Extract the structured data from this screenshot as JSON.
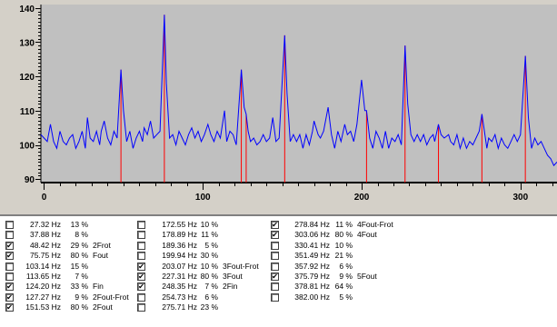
{
  "chart_data": {
    "type": "line",
    "xlim": [
      -2,
      323
    ],
    "ylim": [
      89,
      141
    ],
    "x_ticks": [
      0,
      100,
      200,
      300
    ],
    "y_ticks": [
      90,
      100,
      110,
      120,
      130,
      140
    ],
    "plot_bg": "#c0c0c0",
    "line_color": "#0000ff",
    "marker_color": "#ff0000",
    "markers": [
      {
        "x": 48.42,
        "y": 122
      },
      {
        "x": 75.75,
        "y": 138
      },
      {
        "x": 124.2,
        "y": 122
      },
      {
        "x": 127.27,
        "y": 109
      },
      {
        "x": 151.53,
        "y": 132
      },
      {
        "x": 203.07,
        "y": 110
      },
      {
        "x": 227.31,
        "y": 129
      },
      {
        "x": 248.35,
        "y": 106
      },
      {
        "x": 275.71,
        "y": 109
      },
      {
        "x": 303.06,
        "y": 126
      }
    ],
    "series": [
      {
        "points": [
          [
            -2,
            103
          ],
          [
            0,
            102
          ],
          [
            2,
            101
          ],
          [
            4,
            106
          ],
          [
            6,
            101
          ],
          [
            8,
            99
          ],
          [
            10,
            104
          ],
          [
            12,
            101
          ],
          [
            14,
            100
          ],
          [
            16,
            102
          ],
          [
            18,
            103
          ],
          [
            20,
            99
          ],
          [
            22,
            101
          ],
          [
            24,
            104
          ],
          [
            26,
            99
          ],
          [
            27.32,
            108
          ],
          [
            29,
            102
          ],
          [
            31,
            101
          ],
          [
            33,
            104
          ],
          [
            35,
            100
          ],
          [
            36,
            104
          ],
          [
            37.88,
            107
          ],
          [
            40,
            102
          ],
          [
            42,
            100
          ],
          [
            44,
            104
          ],
          [
            46,
            102
          ],
          [
            48.42,
            122
          ],
          [
            50,
            110
          ],
          [
            52,
            101
          ],
          [
            54,
            104
          ],
          [
            56,
            99
          ],
          [
            58,
            102
          ],
          [
            60,
            104
          ],
          [
            62,
            101
          ],
          [
            63,
            105
          ],
          [
            65,
            103
          ],
          [
            67,
            107
          ],
          [
            69,
            102
          ],
          [
            71,
            103
          ],
          [
            73,
            104
          ],
          [
            75.75,
            138
          ],
          [
            77,
            118
          ],
          [
            79,
            102
          ],
          [
            81,
            103
          ],
          [
            83,
            100
          ],
          [
            85,
            104
          ],
          [
            87,
            102
          ],
          [
            89,
            100
          ],
          [
            91,
            103
          ],
          [
            93,
            105
          ],
          [
            95,
            102
          ],
          [
            97,
            104
          ],
          [
            99,
            101
          ],
          [
            101,
            103
          ],
          [
            103.14,
            106
          ],
          [
            105,
            103
          ],
          [
            107,
            101
          ],
          [
            109,
            104
          ],
          [
            111,
            102
          ],
          [
            113.65,
            110
          ],
          [
            115,
            101
          ],
          [
            117,
            104
          ],
          [
            119,
            103
          ],
          [
            121,
            100
          ],
          [
            124.2,
            122
          ],
          [
            126,
            111
          ],
          [
            127.27,
            109
          ],
          [
            128.5,
            104
          ],
          [
            130,
            101
          ],
          [
            132,
            102
          ],
          [
            134,
            100
          ],
          [
            136,
            101
          ],
          [
            138,
            103
          ],
          [
            140,
            101
          ],
          [
            142,
            102
          ],
          [
            144,
            108
          ],
          [
            146,
            101
          ],
          [
            148,
            102
          ],
          [
            151.53,
            132
          ],
          [
            153,
            115
          ],
          [
            155,
            101
          ],
          [
            157,
            103
          ],
          [
            159,
            101
          ],
          [
            161,
            103
          ],
          [
            163,
            99
          ],
          [
            165,
            103
          ],
          [
            167,
            100
          ],
          [
            169,
            104
          ],
          [
            170,
            107
          ],
          [
            172.55,
            103
          ],
          [
            174,
            102
          ],
          [
            176,
            104
          ],
          [
            178.89,
            111
          ],
          [
            181,
            103
          ],
          [
            183,
            99
          ],
          [
            185,
            104
          ],
          [
            187,
            101
          ],
          [
            189.36,
            106
          ],
          [
            191,
            103
          ],
          [
            193,
            104
          ],
          [
            195,
            101
          ],
          [
            197,
            106
          ],
          [
            199.94,
            119
          ],
          [
            202,
            110
          ],
          [
            203.07,
            110
          ],
          [
            205,
            102
          ],
          [
            207,
            99
          ],
          [
            209,
            104
          ],
          [
            211,
            102
          ],
          [
            213,
            99
          ],
          [
            215,
            104
          ],
          [
            217,
            99
          ],
          [
            219,
            102
          ],
          [
            221,
            101
          ],
          [
            223,
            103
          ],
          [
            225,
            100
          ],
          [
            227.31,
            129
          ],
          [
            229,
            112
          ],
          [
            231,
            103
          ],
          [
            233,
            101
          ],
          [
            235,
            103
          ],
          [
            237,
            101
          ],
          [
            239,
            103
          ],
          [
            241,
            100
          ],
          [
            243,
            102
          ],
          [
            245,
            103
          ],
          [
            246,
            101
          ],
          [
            248.35,
            106
          ],
          [
            250,
            103
          ],
          [
            252,
            102
          ],
          [
            254.73,
            103
          ],
          [
            256,
            101
          ],
          [
            258,
            100
          ],
          [
            260,
            103
          ],
          [
            262,
            99
          ],
          [
            264,
            102
          ],
          [
            266,
            99
          ],
          [
            268,
            101
          ],
          [
            270,
            100
          ],
          [
            272,
            102
          ],
          [
            274,
            104
          ],
          [
            275.71,
            109
          ],
          [
            277,
            105
          ],
          [
            278.84,
            99
          ],
          [
            280,
            102
          ],
          [
            282,
            101
          ],
          [
            284,
            103
          ],
          [
            286,
            99
          ],
          [
            288,
            102
          ],
          [
            290,
            100
          ],
          [
            292,
            99
          ],
          [
            294,
            101
          ],
          [
            296,
            103
          ],
          [
            298,
            101
          ],
          [
            300,
            103
          ],
          [
            303.06,
            126
          ],
          [
            305,
            108
          ],
          [
            307,
            99
          ],
          [
            309,
            102
          ],
          [
            311,
            100
          ],
          [
            313,
            101
          ],
          [
            315,
            99
          ],
          [
            317,
            97
          ],
          [
            319,
            96
          ],
          [
            321,
            94
          ],
          [
            323,
            95
          ]
        ]
      }
    ]
  },
  "peaks": [
    {
      "checked": false,
      "freq": "27.32 Hz",
      "pct": "13 %",
      "label": ""
    },
    {
      "checked": false,
      "freq": "37.88 Hz",
      "pct": "8 %",
      "label": ""
    },
    {
      "checked": true,
      "freq": "48.42 Hz",
      "pct": "29 %",
      "label": "2Frot"
    },
    {
      "checked": true,
      "freq": "75.75 Hz",
      "pct": "80 %",
      "label": "Fout"
    },
    {
      "checked": false,
      "freq": "103.14 Hz",
      "pct": "15 %",
      "label": ""
    },
    {
      "checked": false,
      "freq": "113.65 Hz",
      "pct": "7 %",
      "label": ""
    },
    {
      "checked": true,
      "freq": "124.20 Hz",
      "pct": "33 %",
      "label": "Fin"
    },
    {
      "checked": true,
      "freq": "127.27 Hz",
      "pct": "9 %",
      "label": "2Fout-Frot"
    },
    {
      "checked": true,
      "freq": "151.53 Hz",
      "pct": "80 %",
      "label": "2Fout"
    },
    {
      "checked": false,
      "freq": "172.55 Hz",
      "pct": "10 %",
      "label": ""
    },
    {
      "checked": false,
      "freq": "178.89 Hz",
      "pct": "11 %",
      "label": ""
    },
    {
      "checked": false,
      "freq": "189.36 Hz",
      "pct": "5 %",
      "label": ""
    },
    {
      "checked": false,
      "freq": "199.94 Hz",
      "pct": "30 %",
      "label": ""
    },
    {
      "checked": true,
      "freq": "203.07 Hz",
      "pct": "10 %",
      "label": "3Fout-Frot"
    },
    {
      "checked": true,
      "freq": "227.31 Hz",
      "pct": "80 %",
      "label": "3Fout"
    },
    {
      "checked": true,
      "freq": "248.35 Hz",
      "pct": "7 %",
      "label": "2Fin"
    },
    {
      "checked": false,
      "freq": "254.73 Hz",
      "pct": "6 %",
      "label": ""
    },
    {
      "checked": false,
      "freq": "275.71 Hz",
      "pct": "23 %",
      "label": ""
    },
    {
      "checked": true,
      "freq": "278.84 Hz",
      "pct": "11 %",
      "label": "4Fout-Frot"
    },
    {
      "checked": true,
      "freq": "303.06 Hz",
      "pct": "80 %",
      "label": "4Fout"
    },
    {
      "checked": false,
      "freq": "330.41 Hz",
      "pct": "10 %",
      "label": ""
    },
    {
      "checked": false,
      "freq": "351.49 Hz",
      "pct": "21 %",
      "label": ""
    },
    {
      "checked": false,
      "freq": "357.92 Hz",
      "pct": "6 %",
      "label": ""
    },
    {
      "checked": true,
      "freq": "375.79 Hz",
      "pct": "9 %",
      "label": "5Fout"
    },
    {
      "checked": false,
      "freq": "378.81 Hz",
      "pct": "64 %",
      "label": ""
    },
    {
      "checked": false,
      "freq": "382.00 Hz",
      "pct": "5 %",
      "label": ""
    }
  ]
}
